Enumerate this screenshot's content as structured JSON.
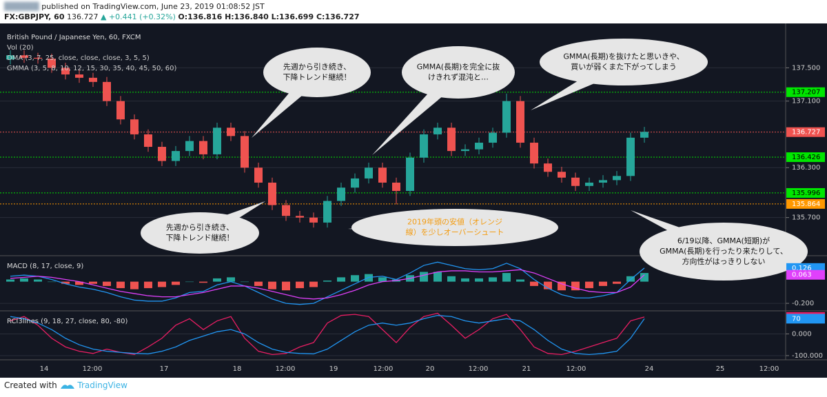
{
  "header": {
    "published": "published on TradingView.com, June 23, 2019 01:08:52 JST",
    "symbol": "FX:GBPJPY, 60",
    "price": "136.727",
    "change": "▲ +0.441 (+0.32%)",
    "ohlc": "O:136.816 H:136.840 L:136.699 C:136.727"
  },
  "time_labels": [
    "14",
    "12:00",
    "17",
    "18",
    "12:00",
    "19",
    "12:00",
    "20",
    "12:00",
    "21",
    "12:00",
    "24",
    "25",
    "12:00"
  ],
  "footer": {
    "created": "Created with",
    "brand": "TradingView"
  },
  "chart_data": [
    {
      "type": "candlestick",
      "title": "British Pound / Japanese Yen, 60, FXCM",
      "legend": [
        "Vol (20)",
        "DMA (3, 7, 25, close, close, close, 3, 5, 5)",
        "GMMA (3, 5, 8, 10, 12, 15, 30, 35, 40, 45, 50, 60)"
      ],
      "up_color": "#26a69a",
      "down_color": "#ef5350",
      "open": [
        137.6,
        137.65,
        137.62,
        137.61,
        137.5,
        137.42,
        137.38,
        137.33,
        137.1,
        136.88,
        136.7,
        136.55,
        136.38,
        136.5,
        136.62,
        136.46,
        136.78,
        136.68,
        136.3,
        136.12,
        135.85,
        135.72,
        135.7,
        135.64,
        135.9,
        136.06,
        136.17,
        136.3,
        136.12,
        136.02,
        136.42,
        136.7,
        136.78,
        136.5,
        136.52,
        136.6,
        136.72,
        137.1,
        136.6,
        136.35,
        136.25,
        136.18,
        136.08,
        136.12,
        136.15,
        136.2,
        136.66
      ],
      "high": [
        137.71,
        137.71,
        137.68,
        137.67,
        137.56,
        137.48,
        137.44,
        137.39,
        137.16,
        136.94,
        136.76,
        136.61,
        136.56,
        136.68,
        136.68,
        136.84,
        136.84,
        136.74,
        136.36,
        136.18,
        135.91,
        135.78,
        135.76,
        135.96,
        136.12,
        136.23,
        136.36,
        136.36,
        136.18,
        136.48,
        136.76,
        136.84,
        136.84,
        136.58,
        136.66,
        136.78,
        137.19,
        137.16,
        136.66,
        136.41,
        136.31,
        136.24,
        136.18,
        136.21,
        136.26,
        136.72,
        136.79
      ],
      "low": [
        137.54,
        137.56,
        137.55,
        137.44,
        137.36,
        137.32,
        137.27,
        137.04,
        136.82,
        136.64,
        136.49,
        136.32,
        136.32,
        136.44,
        136.4,
        136.4,
        136.62,
        136.24,
        136.06,
        135.79,
        135.66,
        135.64,
        135.58,
        135.58,
        135.84,
        136.0,
        136.11,
        136.06,
        135.86,
        135.96,
        136.36,
        136.64,
        136.44,
        136.44,
        136.46,
        136.54,
        136.66,
        136.54,
        136.29,
        136.19,
        136.12,
        136.02,
        136.02,
        136.06,
        136.09,
        136.14,
        136.6
      ],
      "close": [
        137.65,
        137.62,
        137.61,
        137.5,
        137.42,
        137.38,
        137.33,
        137.1,
        136.88,
        136.7,
        136.55,
        136.38,
        136.5,
        136.62,
        136.46,
        136.78,
        136.68,
        136.3,
        136.12,
        135.85,
        135.72,
        135.7,
        135.64,
        135.9,
        136.06,
        136.17,
        136.3,
        136.12,
        136.02,
        136.42,
        136.7,
        136.78,
        136.5,
        136.52,
        136.6,
        136.72,
        137.1,
        136.6,
        136.35,
        136.25,
        136.18,
        136.08,
        136.12,
        136.15,
        136.2,
        136.66,
        136.73
      ],
      "ylim": [
        135.25,
        138.0
      ],
      "yticks": [
        {
          "value": 137.5,
          "label": "137.500"
        },
        {
          "value": 137.1,
          "label": "137.100"
        },
        {
          "value": 136.3,
          "label": "136.300"
        },
        {
          "value": 135.7,
          "label": "135.700"
        }
      ],
      "levels": [
        {
          "value": 137.207,
          "color": "#00e600"
        },
        {
          "value": 136.727,
          "color": "#ef5350"
        },
        {
          "value": 136.426,
          "color": "#00e600"
        },
        {
          "value": 135.996,
          "color": "#00e600"
        },
        {
          "value": 135.864,
          "color": "#ff9800"
        }
      ],
      "annotations": [
        {
          "lines": [
            "先週から引き続き、",
            "下降トレンド継続！"
          ],
          "color": "#111111"
        },
        {
          "lines": [
            "GMMA(長期)を完全に抜",
            "けきれず混沌と…"
          ],
          "color": "#111111"
        },
        {
          "lines": [
            "GMMA(長期)を抜けたと思いきや、",
            "買いが弱くまた下がってしまう"
          ],
          "color": "#111111"
        },
        {
          "lines": [
            "先週から引き続き、",
            "下降トレンド継続！"
          ],
          "color": "#111111"
        },
        {
          "lines": [
            "2019年頭の安値（オレンジ",
            "線）を少しオーバーシュート"
          ],
          "color": "#f39c12"
        },
        {
          "lines": [
            "6/19以降、GMMA(短期)が",
            "GMMA(長期)を行ったり来たりして、",
            "方向性がはっきりしない"
          ],
          "color": "#111111"
        }
      ]
    },
    {
      "type": "macd",
      "title": "MACD (8, 17, close, 9)",
      "histogram": {
        "up_color": "#26a69a",
        "down_color": "#ef5350",
        "values": [
          0.02,
          0.03,
          0.02,
          0.0,
          -0.02,
          -0.03,
          -0.02,
          -0.04,
          -0.06,
          -0.07,
          -0.06,
          -0.05,
          -0.03,
          0.0,
          -0.01,
          0.03,
          0.04,
          0.0,
          -0.04,
          -0.07,
          -0.08,
          -0.06,
          -0.05,
          0.01,
          0.04,
          0.06,
          0.07,
          0.04,
          0.02,
          0.06,
          0.09,
          0.09,
          0.05,
          0.03,
          0.03,
          0.04,
          0.08,
          0.02,
          -0.04,
          -0.07,
          -0.08,
          -0.08,
          -0.06,
          -0.04,
          -0.02,
          0.05,
          0.08
        ]
      },
      "series": [
        {
          "color": "#2196f3",
          "values": [
            0.05,
            0.06,
            0.05,
            0.02,
            -0.02,
            -0.05,
            -0.07,
            -0.1,
            -0.14,
            -0.17,
            -0.18,
            -0.18,
            -0.15,
            -0.1,
            -0.09,
            -0.03,
            0.0,
            -0.04,
            -0.1,
            -0.16,
            -0.2,
            -0.21,
            -0.2,
            -0.14,
            -0.08,
            -0.02,
            0.04,
            0.05,
            0.02,
            0.08,
            0.15,
            0.18,
            0.15,
            0.12,
            0.11,
            0.12,
            0.17,
            0.12,
            0.02,
            -0.06,
            -0.12,
            -0.15,
            -0.15,
            -0.13,
            -0.1,
            0.02,
            0.126
          ]
        },
        {
          "color": "#e040fb",
          "values": [
            0.03,
            0.04,
            0.05,
            0.04,
            0.02,
            0.0,
            -0.03,
            -0.06,
            -0.09,
            -0.11,
            -0.13,
            -0.14,
            -0.14,
            -0.12,
            -0.1,
            -0.07,
            -0.04,
            -0.04,
            -0.06,
            -0.09,
            -0.12,
            -0.15,
            -0.16,
            -0.15,
            -0.12,
            -0.08,
            -0.03,
            0.0,
            0.01,
            0.03,
            0.06,
            0.09,
            0.1,
            0.1,
            0.09,
            0.09,
            0.1,
            0.11,
            0.08,
            0.03,
            -0.02,
            -0.06,
            -0.09,
            -0.1,
            -0.1,
            -0.05,
            0.063
          ]
        }
      ],
      "ylim": [
        -0.263,
        0.233
      ],
      "yticks": [
        {
          "value": -0.2,
          "label": "-0.200"
        }
      ]
    },
    {
      "type": "line",
      "title": "RCI3lines (9, 18, 27, close, 80, -80)",
      "series": [
        {
          "color": "#e91e63",
          "values": [
            60,
            80,
            40,
            -20,
            -60,
            -80,
            -90,
            -70,
            -85,
            -95,
            -60,
            -20,
            40,
            70,
            20,
            60,
            80,
            -20,
            -80,
            -95,
            -90,
            -60,
            -40,
            50,
            85,
            90,
            80,
            20,
            -40,
            30,
            80,
            95,
            40,
            -20,
            20,
            70,
            90,
            20,
            -60,
            -90,
            -95,
            -80,
            -60,
            -40,
            -20,
            60,
            77.915
          ]
        },
        {
          "color": "#2196f3",
          "values": [
            80,
            70,
            50,
            20,
            -20,
            -50,
            -70,
            -80,
            -85,
            -90,
            -92,
            -80,
            -60,
            -30,
            -10,
            10,
            20,
            0,
            -40,
            -70,
            -85,
            -90,
            -92,
            -70,
            -30,
            10,
            40,
            50,
            40,
            50,
            70,
            85,
            80,
            60,
            50,
            60,
            70,
            60,
            20,
            -30,
            -70,
            -90,
            -95,
            -90,
            -80,
            -20,
            70
          ]
        }
      ],
      "ylim": [
        -116,
        103
      ],
      "yticks": [
        {
          "value": 0,
          "label": "0.000"
        },
        {
          "value": -100,
          "label": "-100.000"
        }
      ]
    }
  ]
}
